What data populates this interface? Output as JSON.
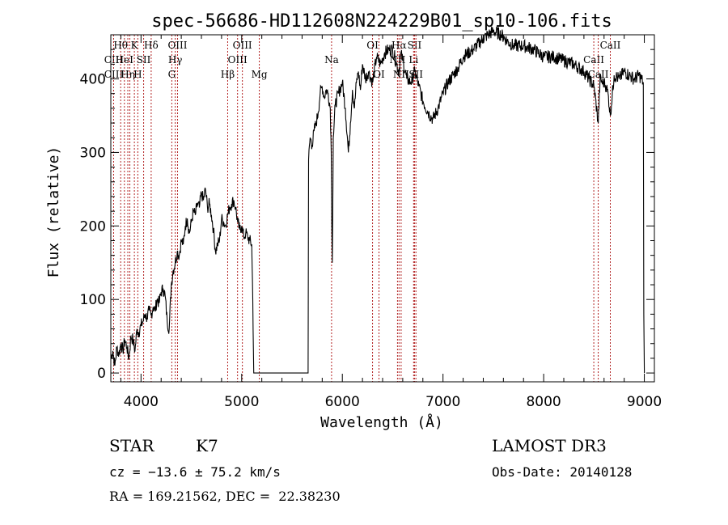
{
  "chart_data": {
    "type": "line",
    "title": "spec-56686-HD112608N224229B01_sp10-106.fits",
    "xlabel": "Wavelength (Å)",
    "ylabel": "Flux (relative)",
    "xlim": [
      3700,
      9100
    ],
    "ylim": [
      -12,
      460
    ],
    "xticks": [
      4000,
      5000,
      6000,
      7000,
      8000,
      9000
    ],
    "yticks": [
      0,
      100,
      200,
      300,
      400
    ],
    "grid": false,
    "series": [
      {
        "x": [
          3700,
          3720,
          3740,
          3760,
          3780,
          3800,
          3820,
          3840,
          3860,
          3880,
          3900,
          3920,
          3940,
          3960,
          3980,
          4000,
          4020,
          4040,
          4060,
          4080,
          4100,
          4120,
          4140,
          4160,
          4180,
          4200,
          4220,
          4240,
          4260,
          4280,
          4300,
          4320,
          4340,
          4360,
          4380,
          4400,
          4420,
          4440,
          4460,
          4480,
          4500,
          4520,
          4540,
          4560,
          4580,
          4600,
          4620,
          4640,
          4660,
          4680,
          4700,
          4720,
          4740,
          4760,
          4780,
          4800,
          4820,
          4840,
          4860,
          4880,
          4900,
          4920,
          4940,
          4960,
          4980,
          5000,
          5020,
          5040,
          5060,
          5080,
          5100,
          5110,
          5120,
          5130,
          5140,
          5660,
          5665,
          5680,
          5700,
          5720,
          5740,
          5760,
          5780,
          5800,
          5820,
          5840,
          5860,
          5880,
          5890,
          5895,
          5900,
          5910,
          5930,
          5960,
          6000,
          6030,
          6060,
          6080,
          6100,
          6120,
          6140,
          6160,
          6180,
          6200,
          6230,
          6260,
          6300,
          6340,
          6380,
          6420,
          6460,
          6500,
          6540,
          6562,
          6580,
          6600,
          6640,
          6680,
          6720,
          6760,
          6800,
          6850,
          6900,
          6950,
          7000,
          7050,
          7100,
          7150,
          7200,
          7300,
          7400,
          7500,
          7580,
          7650,
          7700,
          7800,
          7900,
          8000,
          8100,
          8200,
          8300,
          8400,
          8450,
          8500,
          8542,
          8560,
          8580,
          8600,
          8620,
          8640,
          8662,
          8700,
          8750,
          8800,
          8850,
          8900,
          8950,
          8990,
          8995,
          9000
        ],
        "y": [
          20,
          30,
          10,
          35,
          25,
          40,
          30,
          45,
          35,
          20,
          50,
          45,
          30,
          60,
          55,
          65,
          70,
          80,
          75,
          85,
          78,
          90,
          85,
          100,
          95,
          110,
          115,
          105,
          70,
          60,
          120,
          140,
          150,
          165,
          160,
          180,
          175,
          200,
          210,
          190,
          205,
          220,
          215,
          230,
          225,
          245,
          235,
          250,
          225,
          230,
          215,
          195,
          165,
          175,
          180,
          210,
          205,
          200,
          215,
          225,
          230,
          235,
          225,
          205,
          195,
          200,
          185,
          190,
          185,
          180,
          175,
          100,
          0,
          0,
          0,
          0,
          290,
          320,
          310,
          330,
          340,
          355,
          380,
          390,
          375,
          385,
          380,
          360,
          300,
          200,
          150,
          320,
          365,
          380,
          395,
          360,
          300,
          340,
          385,
          360,
          395,
          410,
          385,
          420,
          400,
          410,
          395,
          430,
          420,
          435,
          440,
          440,
          420,
          410,
          435,
          425,
          400,
          395,
          410,
          390,
          370,
          355,
          345,
          360,
          380,
          395,
          405,
          415,
          430,
          440,
          455,
          465,
          460,
          450,
          445,
          445,
          440,
          430,
          430,
          425,
          420,
          410,
          400,
          390,
          340,
          400,
          395,
          395,
          390,
          380,
          350,
          405,
          400,
          410,
          405,
          400,
          405,
          395,
          80,
          0
        ]
      }
    ],
    "lines": [
      {
        "w": 3728,
        "label": "CIII",
        "row": 1
      },
      {
        "w": 3728,
        "label": "CIII",
        "row": 2
      },
      {
        "w": 3798,
        "label": "Hθ",
        "row": 0
      },
      {
        "w": 3835,
        "label": "HeI",
        "row": 1
      },
      {
        "w": 3869,
        "label": "Hη",
        "row": 2
      },
      {
        "w": 3889,
        "label": "",
        "row": -1
      },
      {
        "w": 3934,
        "label": "K",
        "row": 0
      },
      {
        "w": 3968,
        "label": "H",
        "row": 2
      },
      {
        "w": 4026,
        "label": "SII",
        "row": 1
      },
      {
        "w": 4101,
        "label": "Hδ",
        "row": 0
      },
      {
        "w": 4306,
        "label": "G",
        "row": 2
      },
      {
        "w": 4340,
        "label": "Hγ",
        "row": 1
      },
      {
        "w": 4363,
        "label": "OIII",
        "row": 0
      },
      {
        "w": 4861,
        "label": "Hβ",
        "row": 2
      },
      {
        "w": 4959,
        "label": "OIII",
        "row": 1
      },
      {
        "w": 5007,
        "label": "OIII",
        "row": 0
      },
      {
        "w": 5175,
        "label": "Mg",
        "row": 2
      },
      {
        "w": 5893,
        "label": "Na",
        "row": 1
      },
      {
        "w": 6300,
        "label": "OI",
        "row": 0
      },
      {
        "w": 6364,
        "label": "OI",
        "row": 2
      },
      {
        "w": 6548,
        "label": "NII",
        "row": 1
      },
      {
        "w": 6563,
        "label": "Hα",
        "row": 0
      },
      {
        "w": 6584,
        "label": "NII",
        "row": 2
      },
      {
        "w": 6708,
        "label": "Li",
        "row": 1
      },
      {
        "w": 6717,
        "label": "SII",
        "row": 0
      },
      {
        "w": 6731,
        "label": "SII",
        "row": 2
      },
      {
        "w": 8498,
        "label": "CaII",
        "row": 1
      },
      {
        "w": 8542,
        "label": "CaII",
        "row": 2
      },
      {
        "w": 8662,
        "label": "CaII",
        "row": 0
      }
    ],
    "line_color": "#b22222"
  },
  "info": {
    "class": "STAR",
    "subclass": "K7",
    "survey": "LAMOST DR3",
    "cz": "cz = −13.6 ± 75.2 km/s",
    "obs_date": "Obs-Date: 20140128",
    "coords": "RA = 169.21562, DEC =  22.38230"
  }
}
